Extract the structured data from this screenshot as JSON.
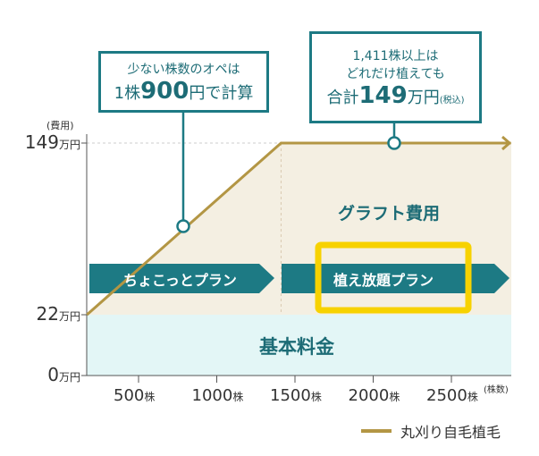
{
  "chart_data": {
    "type": "line",
    "title": "",
    "xlabel": "(株数)",
    "ylabel": "(費用)",
    "x_unit": "株",
    "y_unit": "万円",
    "x_ticks": [
      500,
      1000,
      1500,
      2000,
      2500
    ],
    "y_ticks": [
      0,
      22,
      149
    ],
    "xlim": [
      170,
      2880
    ],
    "ylim": [
      0,
      149
    ],
    "series": [
      {
        "name": "丸刈り自毛植毛",
        "color": "#b39644",
        "points": [
          [
            170,
            22
          ],
          [
            1411,
            149
          ],
          [
            2880,
            149
          ]
        ]
      }
    ],
    "regions": {
      "base": "基本料金",
      "graft": "グラフト費用"
    },
    "plans": [
      "ちょこっとプラン",
      "植え放題プラン"
    ],
    "highlighted_plan": "植え放題プラン",
    "callouts": [
      {
        "line1": "少ない株数のオペは",
        "pre": "1株",
        "num": "900",
        "post": "円で計算"
      },
      {
        "line1": "1,411株以上は",
        "line2": "どれだけ植えても",
        "pre": "合計",
        "num": "149",
        "post": "万円",
        "note": "(税込)"
      }
    ],
    "legend_position": "bottom-right"
  },
  "colors": {
    "teal": "#1d7a84",
    "gold": "#b39644",
    "highlight": "#f7d200",
    "tan": "#f4efe2",
    "cyan": "#e3f6f6"
  }
}
